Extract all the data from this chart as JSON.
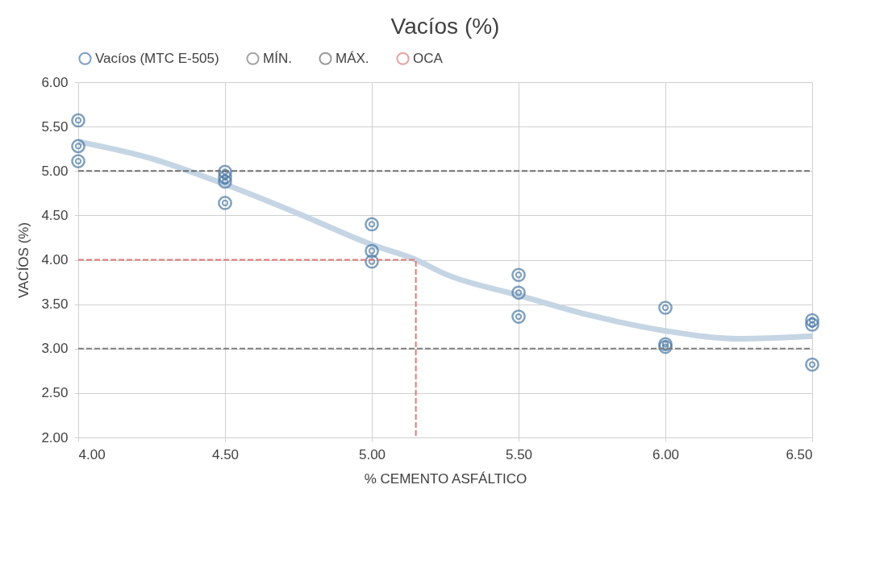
{
  "chart_data": {
    "type": "scatter",
    "title": "Vacíos (%)",
    "xlabel": "% CEMENTO ASFÁLTICO",
    "ylabel": "VACÍOS (%)",
    "xlim": [
      4.0,
      6.5
    ],
    "xticks": [
      {
        "value": 4.0,
        "label": "4.00"
      },
      {
        "value": 4.5,
        "label": "4.50"
      },
      {
        "value": 5.0,
        "label": "5.00"
      },
      {
        "value": 5.5,
        "label": "5.50"
      },
      {
        "value": 6.0,
        "label": "6.00"
      },
      {
        "value": 6.5,
        "label": "6.50"
      }
    ],
    "ylim": [
      2.0,
      6.0
    ],
    "yticks": [
      {
        "value": 2.0,
        "label": "2.00"
      },
      {
        "value": 2.5,
        "label": "2.50"
      },
      {
        "value": 3.0,
        "label": "3.00"
      },
      {
        "value": 3.5,
        "label": "3.50"
      },
      {
        "value": 4.0,
        "label": "4.00"
      },
      {
        "value": 4.5,
        "label": "4.50"
      },
      {
        "value": 5.0,
        "label": "5.00"
      },
      {
        "value": 5.5,
        "label": "5.50"
      },
      {
        "value": 6.0,
        "label": "6.00"
      }
    ],
    "grid": true,
    "legend": "top",
    "series": [
      {
        "type": "line",
        "color": "#c5d5e4",
        "x": [
          4.0,
          4.25,
          4.5,
          4.75,
          5.0,
          5.15,
          5.25,
          5.5,
          5.75,
          6.0,
          6.25,
          6.5
        ],
        "values": [
          5.33,
          5.14,
          4.85,
          4.52,
          4.17,
          4.0,
          3.84,
          3.6,
          3.37,
          3.2,
          3.11,
          3.14
        ]
      },
      {
        "name": "Vacíos (MTC E-505)",
        "marker": "circle",
        "color": "#4a78a4",
        "x": [
          4.0,
          4.0,
          4.0,
          4.5,
          4.5,
          4.5,
          4.5,
          5.0,
          5.0,
          5.0,
          5.5,
          5.5,
          5.5,
          6.0,
          6.0,
          6.0,
          6.5,
          6.5,
          6.5
        ],
        "values": [
          5.57,
          5.28,
          5.11,
          4.99,
          4.93,
          4.88,
          4.64,
          4.4,
          4.1,
          3.98,
          3.83,
          3.63,
          3.36,
          3.46,
          3.05,
          3.02,
          3.32,
          3.27,
          2.82
        ]
      },
      {
        "name": "MÍN.",
        "type": "line",
        "line_style": "dashed",
        "color": "#7f7f7f",
        "x": [
          4.0,
          6.5
        ],
        "values": [
          3.0,
          3.0
        ]
      },
      {
        "name": "MÁX.",
        "type": "line",
        "line_style": "dashed",
        "color": "#6f6f6f",
        "x": [
          4.0,
          6.5
        ],
        "values": [
          5.0,
          5.0
        ]
      },
      {
        "name": "OCA",
        "type": "line",
        "line_style": "dashed",
        "color": "#e07b7b",
        "x": [
          4.0,
          5.15,
          5.15
        ],
        "values": [
          4.0,
          4.0,
          2.0
        ]
      }
    ]
  }
}
